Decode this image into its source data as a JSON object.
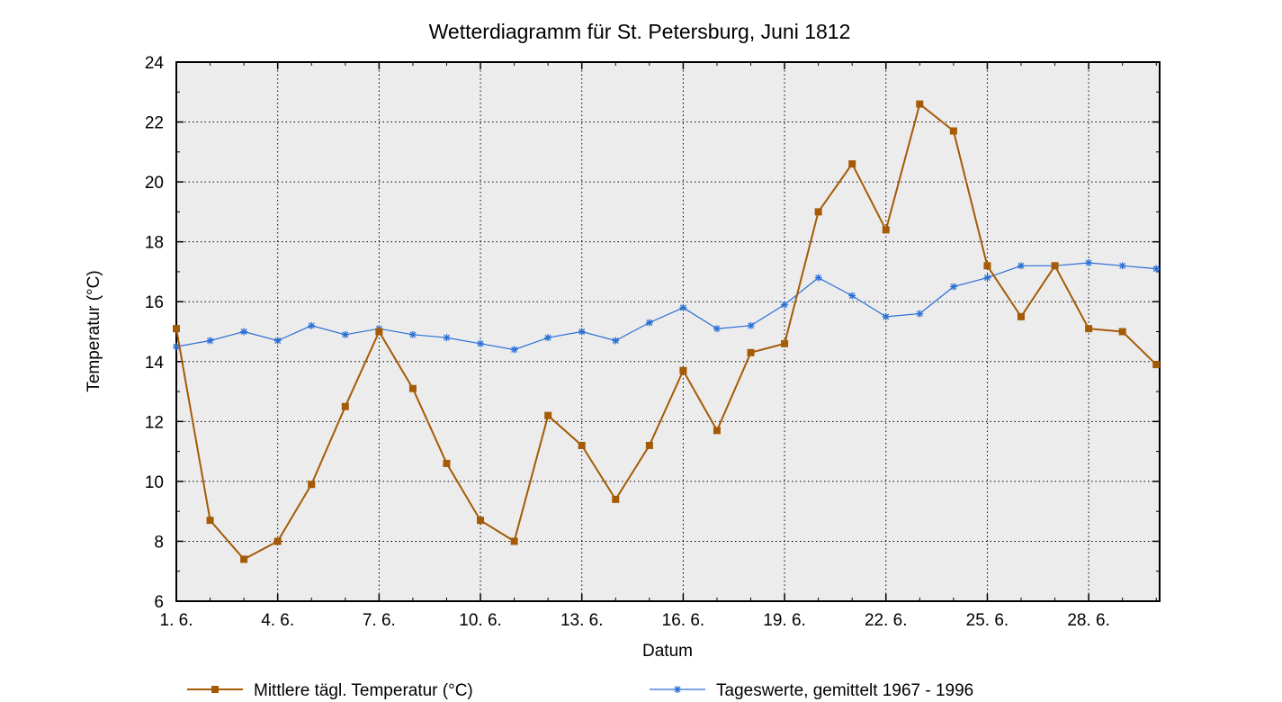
{
  "chart_data": {
    "type": "line",
    "title": "Wetterdiagramm für St. Petersburg, Juni 1812",
    "xlabel": "Datum",
    "ylabel": "Temperatur (°C)",
    "x": [
      1,
      2,
      3,
      4,
      5,
      6,
      7,
      8,
      9,
      10,
      11,
      12,
      13,
      14,
      15,
      16,
      17,
      18,
      19,
      20,
      21,
      22,
      23,
      24,
      25,
      26,
      27,
      28,
      29,
      30
    ],
    "xlim": [
      1,
      30
    ],
    "ylim": [
      6,
      24
    ],
    "x_ticks": [
      1,
      4,
      7,
      10,
      13,
      16,
      19,
      22,
      25,
      28
    ],
    "x_tick_labels": [
      "1. 6.",
      "4. 6.",
      "7. 6.",
      "10. 6.",
      "13. 6.",
      "16. 6.",
      "19. 6.",
      "22. 6.",
      "25. 6.",
      "28. 6."
    ],
    "y_ticks": [
      6,
      8,
      10,
      12,
      14,
      16,
      18,
      20,
      22,
      24
    ],
    "y_tick_labels": [
      "6",
      "8",
      "10",
      "12",
      "14",
      "16",
      "18",
      "20",
      "22",
      "24"
    ],
    "grid": true,
    "legend_position": "bottom",
    "series": [
      {
        "name": "Mittlere tägl. Temperatur (°C)",
        "color": "#a55a05",
        "marker": "square",
        "values": [
          15.1,
          8.7,
          7.4,
          8.0,
          9.9,
          12.5,
          15.0,
          13.1,
          10.6,
          8.7,
          8.0,
          12.2,
          11.2,
          9.4,
          11.2,
          13.7,
          11.7,
          14.3,
          14.6,
          19.0,
          20.6,
          18.4,
          22.6,
          21.7,
          17.2,
          15.5,
          17.2,
          15.1,
          15.0,
          13.9
        ]
      },
      {
        "name": "Tageswerte, gemittelt 1967 - 1996",
        "color": "#2a6fd6",
        "marker": "asterisk",
        "values": [
          14.5,
          14.7,
          15.0,
          14.7,
          15.2,
          14.9,
          15.1,
          14.9,
          14.8,
          14.6,
          14.4,
          14.8,
          15.0,
          14.7,
          15.3,
          15.8,
          15.1,
          15.2,
          15.9,
          16.8,
          16.2,
          15.5,
          15.6,
          16.5,
          16.8,
          17.2,
          17.2,
          17.3,
          17.2,
          17.1
        ]
      }
    ]
  }
}
